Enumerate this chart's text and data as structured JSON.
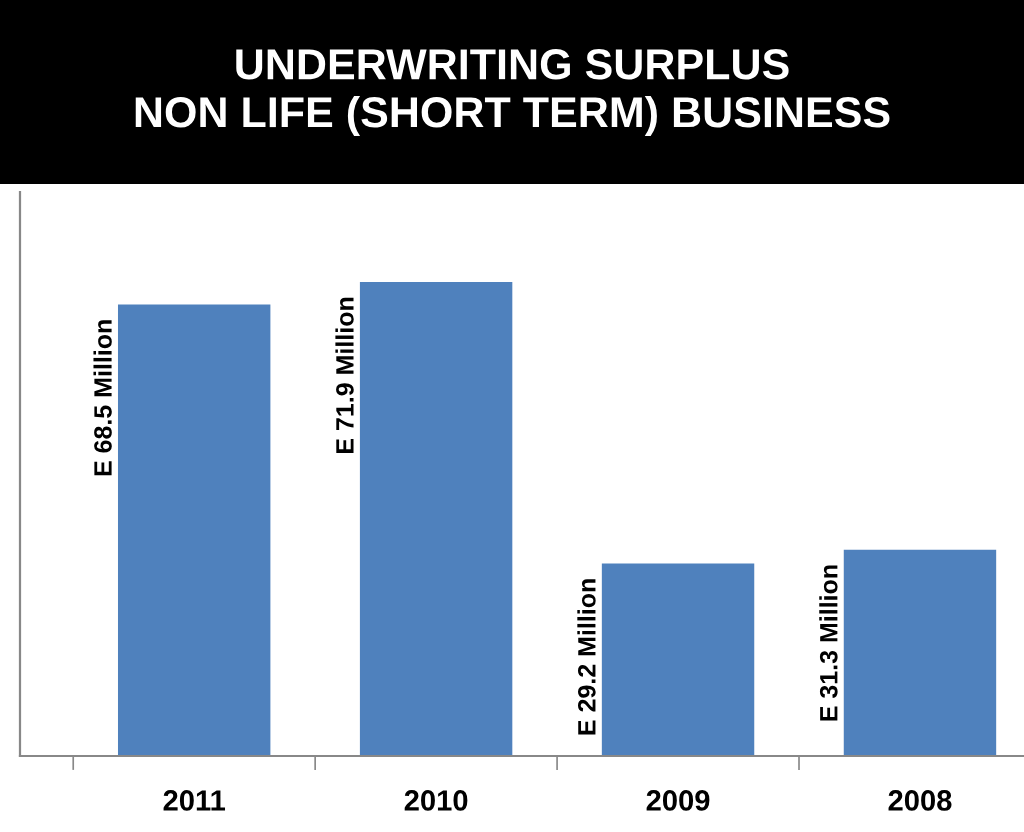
{
  "chart_data": {
    "type": "bar",
    "title": "UNDERWRITING SURPLUS\nNON LIFE (SHORT TERM) BUSINESS",
    "categories": [
      "2011",
      "2010",
      "2009",
      "2008"
    ],
    "values": [
      68.5,
      71.9,
      29.2,
      31.3
    ],
    "value_labels": [
      "E 68.5 Million",
      "E 71.9 Million",
      "E 29.2 Million",
      "E 31.3 Million"
    ],
    "color": "#4f81bd",
    "grid": false,
    "legend": false
  }
}
